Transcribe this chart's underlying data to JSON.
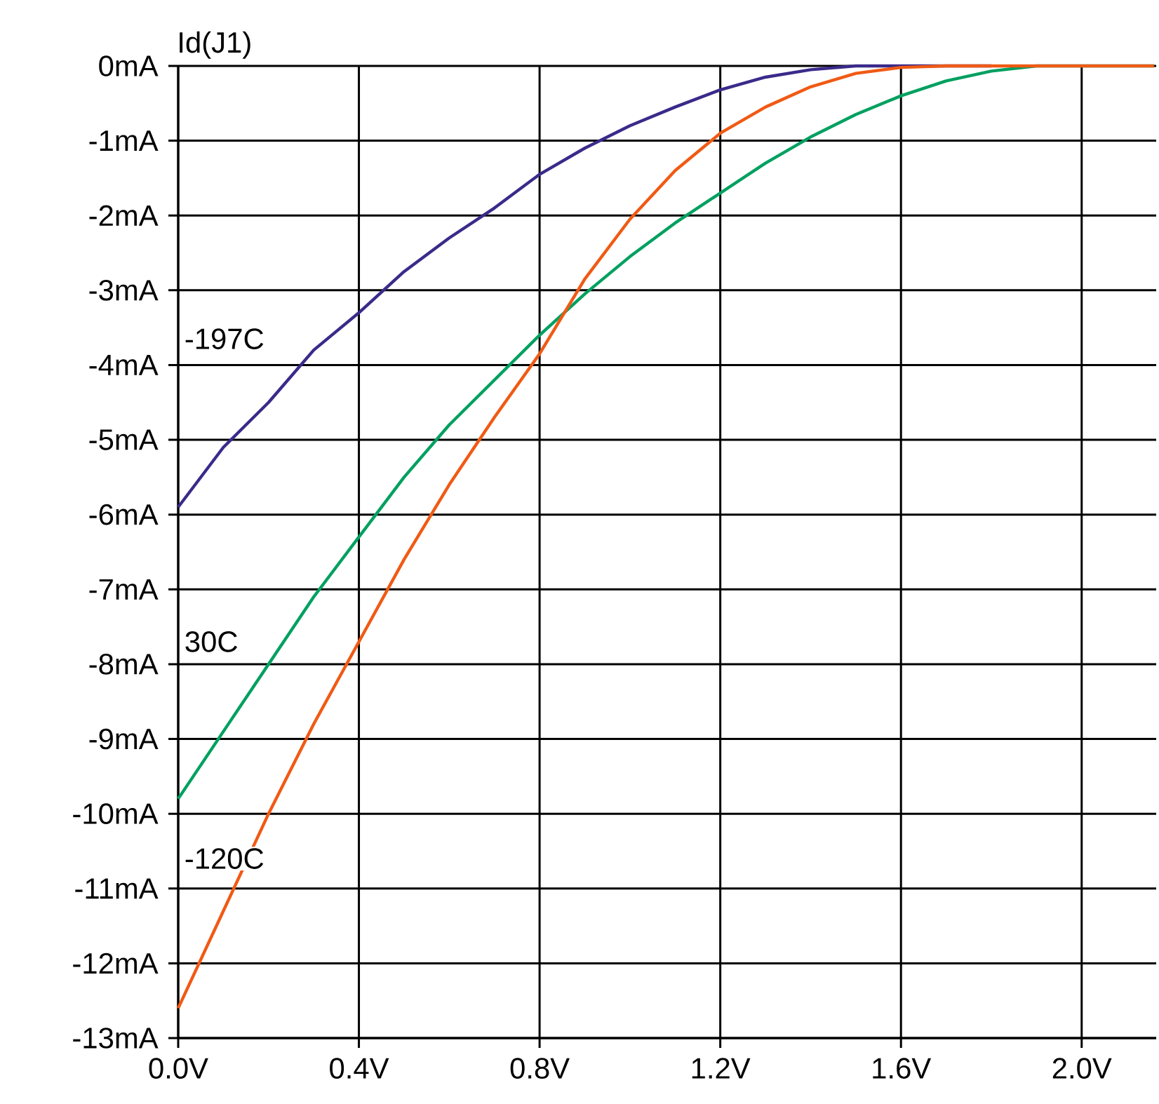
{
  "chart_data": {
    "type": "line",
    "ylabel": "Id(J1)",
    "x": [
      0,
      0.1,
      0.2,
      0.3,
      0.4,
      0.5,
      0.6,
      0.7,
      0.8,
      0.9,
      1.0,
      1.1,
      1.2,
      1.3,
      1.4,
      1.5,
      1.6,
      1.7,
      1.8,
      1.9,
      2.0,
      2.16
    ],
    "series": [
      {
        "name": "-197C",
        "color": "#3b2a8a",
        "values": [
          -5.9,
          -5.1,
          -4.5,
          -3.8,
          -3.3,
          -2.75,
          -2.3,
          -1.9,
          -1.45,
          -1.1,
          -0.8,
          -0.55,
          -0.32,
          -0.15,
          -0.05,
          0,
          0,
          0,
          0,
          null,
          null,
          null
        ]
      },
      {
        "name": "30C",
        "color": "#00a060",
        "values": [
          -9.8,
          -8.9,
          -8.0,
          -7.1,
          -6.3,
          -5.5,
          -4.8,
          -4.2,
          -3.6,
          -3.05,
          -2.55,
          -2.1,
          -1.7,
          -1.3,
          -0.95,
          -0.65,
          -0.4,
          -0.2,
          -0.07,
          0,
          0,
          0
        ]
      },
      {
        "name": "-120C",
        "color": "#f05a14",
        "values": [
          -12.6,
          -11.3,
          -10.0,
          -8.8,
          -7.7,
          -6.6,
          -5.6,
          -4.7,
          -3.85,
          -2.85,
          -2.05,
          -1.4,
          -0.9,
          -0.55,
          -0.28,
          -0.1,
          -0.02,
          0,
          0,
          0,
          0,
          0
        ]
      }
    ],
    "xlim": [
      0,
      2.165
    ],
    "ylim": [
      -13,
      0
    ],
    "xticks": [
      {
        "value": 0,
        "label": "0.0V"
      },
      {
        "value": 0.4,
        "label": "0.4V"
      },
      {
        "value": 0.8,
        "label": "0.8V"
      },
      {
        "value": 1.2,
        "label": "1.2V"
      },
      {
        "value": 1.6,
        "label": "1.6V"
      },
      {
        "value": 2.0,
        "label": "2.0V"
      }
    ],
    "yticks": [
      {
        "value": 0,
        "label": "0mA"
      },
      {
        "value": -1,
        "label": "-1mA"
      },
      {
        "value": -2,
        "label": "-2mA"
      },
      {
        "value": -3,
        "label": "-3mA"
      },
      {
        "value": -4,
        "label": "-4mA"
      },
      {
        "value": -5,
        "label": "-5mA"
      },
      {
        "value": -6,
        "label": "-6mA"
      },
      {
        "value": -7,
        "label": "-7mA"
      },
      {
        "value": -8,
        "label": "-8mA"
      },
      {
        "value": -9,
        "label": "-9mA"
      },
      {
        "value": -10,
        "label": "-10mA"
      },
      {
        "value": -11,
        "label": "-11mA"
      },
      {
        "value": -12,
        "label": "-12mA"
      },
      {
        "value": -13,
        "label": "-13mA"
      }
    ],
    "grid": true
  }
}
